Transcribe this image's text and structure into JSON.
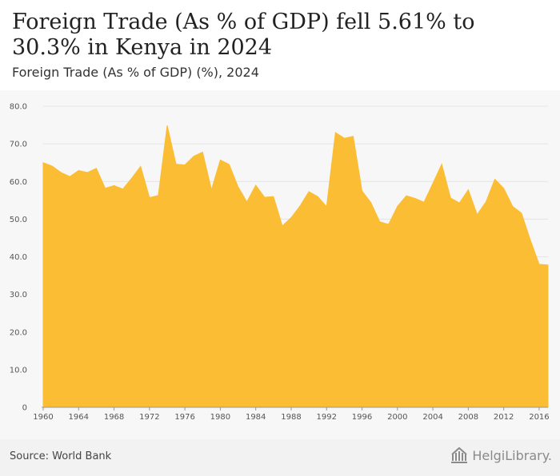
{
  "header": {
    "title": "Foreign Trade (As % of GDP) fell 5.61% to 30.3% in Kenya in 2024",
    "subtitle": "Foreign Trade (As % of GDP) (%), 2024"
  },
  "footer": {
    "source": "Source: World Bank",
    "brand": "HelgiLibrary."
  },
  "chart_data": {
    "type": "area",
    "title": "Foreign Trade (As % of GDP) fell 5.61% to 30.3% in Kenya in 2024",
    "subtitle": "Foreign Trade (As % of GDP) (%), 2024",
    "xlabel": "",
    "ylabel": "",
    "ylim": [
      0,
      80
    ],
    "xlim": [
      1960,
      2017
    ],
    "grid": true,
    "legend": "none",
    "fill_color": "#fbbd34",
    "x_ticks": [
      "1960",
      "1964",
      "1968",
      "1972",
      "1976",
      "1980",
      "1984",
      "1988",
      "1992",
      "1996",
      "2000",
      "2004",
      "2008",
      "2012",
      "2016"
    ],
    "y_ticks": [
      "0",
      "10.0",
      "20.0",
      "30.0",
      "40.0",
      "50.0",
      "60.0",
      "70.0",
      "80.0"
    ],
    "series": [
      {
        "x": [
          1960,
          1961,
          1962,
          1963,
          1964,
          1965,
          1966,
          1967,
          1968,
          1969,
          1970,
          1971,
          1972,
          1973,
          1974,
          1975,
          1976,
          1977,
          1978,
          1979,
          1980,
          1981,
          1982,
          1983,
          1984,
          1985,
          1986,
          1987,
          1988,
          1989,
          1990,
          1991,
          1992,
          1993,
          1994,
          1995,
          1996,
          1997,
          1998,
          1999,
          2000,
          2001,
          2002,
          2003,
          2004,
          2005,
          2006,
          2007,
          2008,
          2009,
          2010,
          2011,
          2012,
          2013,
          2014,
          2015,
          2016,
          2017
        ],
        "values": [
          65.0,
          64.1,
          62.4,
          61.3,
          62.9,
          62.4,
          63.5,
          58.2,
          58.9,
          58.0,
          60.9,
          64.0,
          55.7,
          56.3,
          74.9,
          64.6,
          64.4,
          66.7,
          67.8,
          57.8,
          65.7,
          64.5,
          58.6,
          54.6,
          59.0,
          55.8,
          56.0,
          48.2,
          50.4,
          53.5,
          57.3,
          56.0,
          53.3,
          73.0,
          71.5,
          72.0,
          57.5,
          54.4,
          49.3,
          48.6,
          53.4,
          56.2,
          55.5,
          54.5,
          59.5,
          64.6,
          55.6,
          54.3,
          57.8,
          51.2,
          54.6,
          60.6,
          58.2,
          53.4,
          51.6,
          44.5,
          38.0,
          37.8
        ]
      }
    ]
  }
}
